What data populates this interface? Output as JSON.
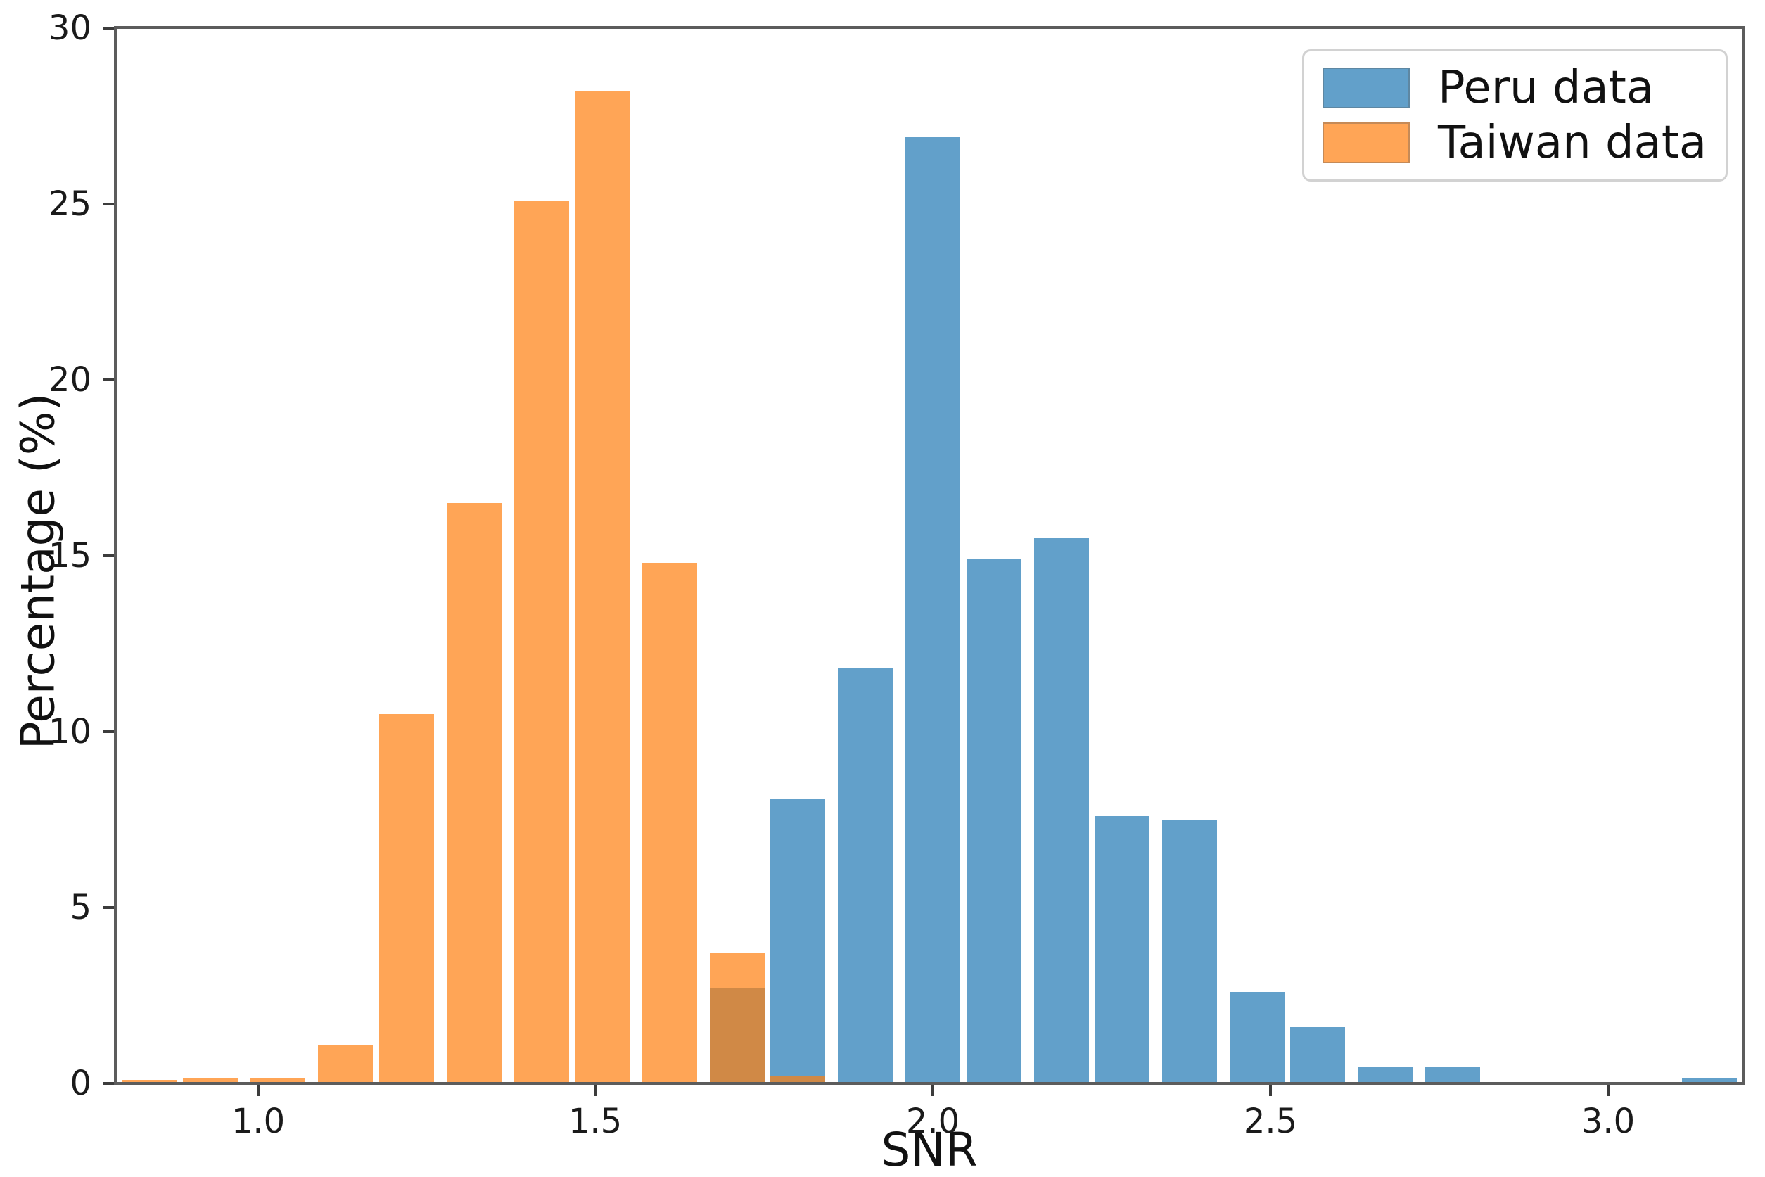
{
  "figure": {
    "background": "#ffffff"
  },
  "labels": {
    "xlabel": "SNR",
    "ylabel": "Percentage (%)"
  },
  "axes": {
    "x_tick_labels": [
      "1.0",
      "1.5",
      "2.0",
      "2.5",
      "3.0"
    ],
    "x_tick_values": [
      1.0,
      1.5,
      2.0,
      2.5,
      3.0
    ],
    "y_tick_labels": [
      "0",
      "5",
      "10",
      "15",
      "20",
      "25",
      "30"
    ],
    "y_tick_values": [
      0,
      5,
      10,
      15,
      20,
      25,
      30
    ]
  },
  "legend": {
    "items": [
      {
        "label": "Peru data",
        "color": "#1f77b4"
      },
      {
        "label": "Taiwan data",
        "color": "#ff7f0e"
      }
    ]
  },
  "chart_data": {
    "type": "bar",
    "subtype": "overlapping-histogram",
    "title": "",
    "xlabel": "SNR",
    "ylabel": "Percentage (%)",
    "xlim": [
      0.79,
      3.2
    ],
    "ylim": [
      0,
      30
    ],
    "grid": false,
    "legend_position": "upper right",
    "bar_alpha": 0.7,
    "bin_width": 0.0964,
    "bin_centers": [
      0.84,
      0.93,
      1.03,
      1.13,
      1.22,
      1.32,
      1.42,
      1.51,
      1.61,
      1.71,
      1.8,
      1.9,
      2.0,
      2.09,
      2.19,
      2.28,
      2.38,
      2.48,
      2.57,
      2.67,
      2.77,
      2.86,
      2.96,
      3.06,
      3.15
    ],
    "series": [
      {
        "name": "Peru data",
        "color": "#1f77b4",
        "values": [
          0,
          0,
          0,
          0,
          0,
          0,
          0,
          0,
          0,
          2.7,
          8.1,
          11.8,
          26.9,
          14.9,
          15.5,
          7.6,
          7.5,
          2.6,
          1.6,
          0.45,
          0.45,
          0,
          0,
          0,
          0.15
        ]
      },
      {
        "name": "Taiwan data",
        "color": "#ff7f0e",
        "values": [
          0.1,
          0.15,
          0.15,
          1.1,
          10.5,
          16.5,
          25.1,
          28.2,
          14.8,
          3.7,
          0.2,
          0,
          0,
          0,
          0,
          0,
          0,
          0,
          0,
          0,
          0,
          0,
          0,
          0,
          0
        ]
      }
    ]
  }
}
